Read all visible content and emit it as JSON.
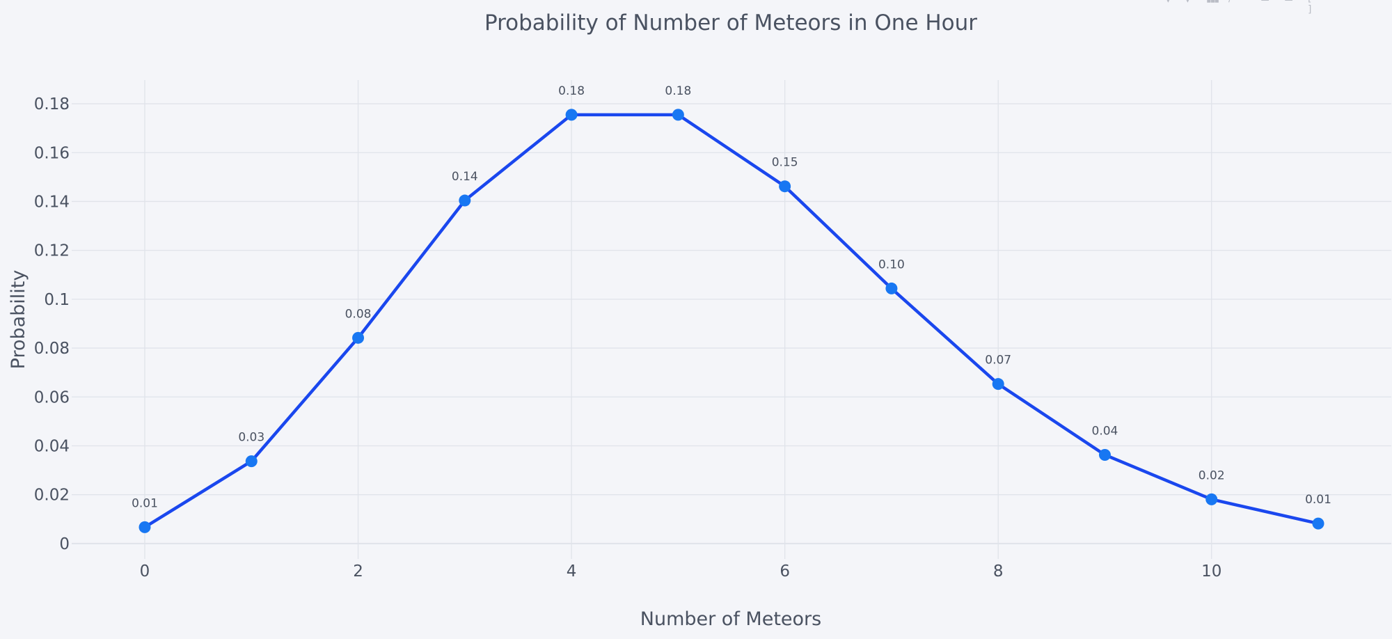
{
  "chart_data": {
    "type": "line",
    "title": "Probability of Number of Meteors in One Hour",
    "xlabel": "Number of Meteors",
    "ylabel": "Probability",
    "x": [
      0,
      1,
      2,
      3,
      4,
      5,
      6,
      7,
      8,
      9,
      10,
      11
    ],
    "series": [
      {
        "name": "Probability",
        "mode": "lines+markers+text",
        "values": [
          0.0067,
          0.0337,
          0.0842,
          0.1404,
          0.1755,
          0.1755,
          0.1462,
          0.1044,
          0.0653,
          0.0363,
          0.0181,
          0.0082
        ],
        "text_labels": [
          "0.01",
          "0.03",
          "0.08",
          "0.14",
          "0.18",
          "0.18",
          "0.15",
          "0.10",
          "0.07",
          "0.04",
          "0.02",
          "0.01"
        ],
        "line_color": "#1a47ee",
        "marker_color": "#1877f2"
      }
    ],
    "x_ticks": [
      0,
      2,
      4,
      6,
      8,
      10
    ],
    "x_tick_labels": [
      "0",
      "2",
      "4",
      "6",
      "8",
      "10"
    ],
    "y_ticks": [
      0,
      0.02,
      0.04,
      0.06,
      0.08,
      0.1,
      0.12,
      0.14,
      0.16,
      0.18
    ],
    "y_tick_labels": [
      "0",
      "0.02",
      "0.04",
      "0.06",
      "0.08",
      "0.1",
      "0.12",
      "0.14",
      "0.16",
      "0.18"
    ],
    "xlim": [
      -0.685,
      11.685
    ],
    "ylim": [
      -0.0063,
      0.1897
    ],
    "grid": true,
    "legend": "none"
  },
  "colors": {
    "background": "#f4f5f9",
    "grid": "#e0e3ea",
    "text": "#4a5261"
  },
  "modebar": {
    "icons": [
      "camera-icon",
      "zoom-icon",
      "pan-icon",
      "box-select-icon",
      "lasso-icon",
      "zoom-in-icon",
      "zoom-out-icon",
      "autoscale-icon"
    ]
  }
}
